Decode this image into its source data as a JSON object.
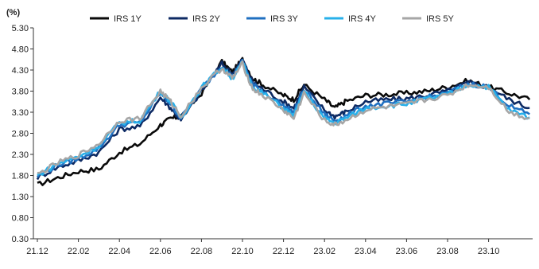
{
  "chart_data": {
    "type": "line",
    "unit_label": "(%)",
    "x_ticks": [
      "21.12",
      "22.02",
      "22.04",
      "22.06",
      "22.08",
      "22.10",
      "22.12",
      "23.02",
      "23.04",
      "23.06",
      "23.08",
      "23.10"
    ],
    "y_ticks": [
      "0.30",
      "0.80",
      "1.30",
      "1.80",
      "2.30",
      "2.80",
      "3.30",
      "3.80",
      "4.30",
      "4.80",
      "5.30"
    ],
    "ylim": [
      0.3,
      5.3
    ],
    "grid": false,
    "legend_position": "top",
    "x": [
      "21.12",
      "22.01",
      "22.02",
      "22.03",
      "22.04",
      "22.05",
      "22.06",
      "22.06",
      "22.07",
      "22.08",
      "22.09",
      "22.09",
      "22.10",
      "22.10",
      "22.11",
      "22.12",
      "22.12",
      "23.01",
      "23.02",
      "23.02",
      "23.03",
      "23.04",
      "23.05",
      "23.06",
      "23.07",
      "23.08",
      "23.09",
      "23.10",
      "23.11",
      "23.12"
    ],
    "series": [
      {
        "name": "IRS 1Y",
        "color": "#0a0a0a",
        "values": [
          1.58,
          1.75,
          1.9,
          1.95,
          2.35,
          2.55,
          3.0,
          3.15,
          3.2,
          3.75,
          4.5,
          4.25,
          4.55,
          4.1,
          3.95,
          3.7,
          3.6,
          3.95,
          3.6,
          3.4,
          3.55,
          3.7,
          3.72,
          3.75,
          3.8,
          3.9,
          4.05,
          3.9,
          3.75,
          3.6
        ]
      },
      {
        "name": "IRS 2Y",
        "color": "#0d2a63",
        "values": [
          1.75,
          2.0,
          2.15,
          2.35,
          2.9,
          2.95,
          3.65,
          3.4,
          3.1,
          3.8,
          4.45,
          4.2,
          4.55,
          4.0,
          3.85,
          3.55,
          3.4,
          3.9,
          3.35,
          3.2,
          3.3,
          3.55,
          3.6,
          3.62,
          3.7,
          3.8,
          4.0,
          3.9,
          3.6,
          3.4
        ]
      },
      {
        "name": "IRS 3Y",
        "color": "#1f6fc0",
        "values": [
          1.78,
          2.05,
          2.2,
          2.45,
          3.0,
          3.05,
          3.75,
          3.5,
          3.15,
          3.85,
          4.4,
          4.15,
          4.5,
          3.95,
          3.8,
          3.45,
          3.3,
          3.85,
          3.25,
          3.1,
          3.2,
          3.45,
          3.5,
          3.55,
          3.65,
          3.75,
          3.98,
          3.9,
          3.45,
          3.25
        ]
      },
      {
        "name": "IRS 4Y",
        "color": "#27b0ea",
        "values": [
          1.8,
          2.08,
          2.25,
          2.5,
          3.05,
          3.1,
          3.8,
          3.55,
          3.18,
          3.88,
          4.38,
          4.1,
          4.48,
          3.9,
          3.75,
          3.4,
          3.2,
          3.8,
          3.15,
          3.05,
          3.15,
          3.4,
          3.45,
          3.5,
          3.62,
          3.72,
          3.96,
          3.9,
          3.35,
          3.18
        ]
      },
      {
        "name": "IRS 5Y",
        "color": "#a6a6a6",
        "values": [
          1.82,
          2.1,
          2.28,
          2.55,
          3.1,
          3.15,
          3.8,
          3.55,
          3.2,
          3.88,
          4.35,
          4.1,
          4.45,
          3.85,
          3.7,
          3.35,
          3.15,
          3.75,
          3.1,
          3.0,
          3.1,
          3.35,
          3.42,
          3.48,
          3.6,
          3.7,
          3.95,
          3.9,
          3.3,
          3.15
        ]
      }
    ]
  }
}
